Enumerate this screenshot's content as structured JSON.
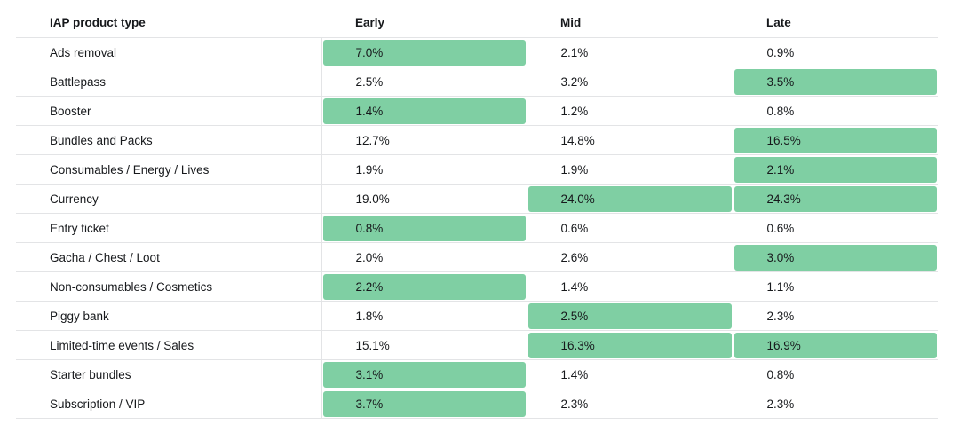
{
  "colors": {
    "highlight_green": "#7fcfa3",
    "border_gray": "#e3e4e6",
    "text_dark": "#17191c",
    "background": "#ffffff"
  },
  "table": {
    "columns": [
      "IAP product type",
      "Early",
      "Mid",
      "Late"
    ],
    "rows": [
      {
        "label": "Ads removal",
        "values": [
          "7.0%",
          "2.1%",
          "0.9%"
        ],
        "highlight": [
          true,
          false,
          false
        ]
      },
      {
        "label": "Battlepass",
        "values": [
          "2.5%",
          "3.2%",
          "3.5%"
        ],
        "highlight": [
          false,
          false,
          true
        ]
      },
      {
        "label": "Booster",
        "values": [
          "1.4%",
          "1.2%",
          "0.8%"
        ],
        "highlight": [
          true,
          false,
          false
        ]
      },
      {
        "label": "Bundles and Packs",
        "values": [
          "12.7%",
          "14.8%",
          "16.5%"
        ],
        "highlight": [
          false,
          false,
          true
        ]
      },
      {
        "label": "Consumables / Energy / Lives",
        "values": [
          "1.9%",
          "1.9%",
          "2.1%"
        ],
        "highlight": [
          false,
          false,
          true
        ]
      },
      {
        "label": "Currency",
        "values": [
          "19.0%",
          "24.0%",
          "24.3%"
        ],
        "highlight": [
          false,
          true,
          true
        ]
      },
      {
        "label": "Entry ticket",
        "values": [
          "0.8%",
          "0.6%",
          "0.6%"
        ],
        "highlight": [
          true,
          false,
          false
        ]
      },
      {
        "label": "Gacha / Chest / Loot",
        "values": [
          "2.0%",
          "2.6%",
          "3.0%"
        ],
        "highlight": [
          false,
          false,
          true
        ]
      },
      {
        "label": "Non-consumables / Cosmetics",
        "values": [
          "2.2%",
          "1.4%",
          "1.1%"
        ],
        "highlight": [
          true,
          false,
          false
        ]
      },
      {
        "label": "Piggy bank",
        "values": [
          "1.8%",
          "2.5%",
          "2.3%"
        ],
        "highlight": [
          false,
          true,
          false
        ]
      },
      {
        "label": "Limited-time events / Sales",
        "values": [
          "15.1%",
          "16.3%",
          "16.9%"
        ],
        "highlight": [
          false,
          true,
          true
        ]
      },
      {
        "label": "Starter bundles",
        "values": [
          "3.1%",
          "1.4%",
          "0.8%"
        ],
        "highlight": [
          true,
          false,
          false
        ]
      },
      {
        "label": "Subscription / VIP",
        "values": [
          "3.7%",
          "2.3%",
          "2.3%"
        ],
        "highlight": [
          true,
          false,
          false
        ]
      }
    ]
  },
  "chart_data": {
    "type": "table",
    "title": "",
    "row_header": "IAP product type",
    "rows": [
      "Ads removal",
      "Battlepass",
      "Booster",
      "Bundles and Packs",
      "Consumables / Energy / Lives",
      "Currency",
      "Entry ticket",
      "Gacha / Chest / Loot",
      "Non-consumables / Cosmetics",
      "Piggy bank",
      "Limited-time events / Sales",
      "Starter bundles",
      "Subscription / VIP"
    ],
    "unit": "%",
    "series": [
      {
        "name": "Early",
        "values": [
          7.0,
          2.5,
          1.4,
          12.7,
          1.9,
          19.0,
          0.8,
          2.0,
          2.2,
          1.8,
          15.1,
          3.1,
          3.7
        ]
      },
      {
        "name": "Mid",
        "values": [
          2.1,
          3.2,
          1.2,
          14.8,
          1.9,
          24.0,
          0.6,
          2.6,
          1.4,
          2.5,
          16.3,
          1.4,
          2.3
        ]
      },
      {
        "name": "Late",
        "values": [
          0.9,
          3.5,
          0.8,
          16.5,
          2.1,
          24.3,
          0.6,
          3.0,
          1.1,
          2.3,
          16.9,
          0.8,
          2.3
        ]
      }
    ],
    "highlighted_cells": [
      [
        "Early"
      ],
      [
        "Late"
      ],
      [
        "Early"
      ],
      [
        "Late"
      ],
      [
        "Late"
      ],
      [
        "Mid",
        "Late"
      ],
      [
        "Early"
      ],
      [
        "Late"
      ],
      [
        "Early"
      ],
      [
        "Mid"
      ],
      [
        "Mid",
        "Late"
      ],
      [
        "Early"
      ],
      [
        "Early"
      ]
    ],
    "layout": {
      "grid": "horizontal and vertical separators",
      "highlight_style": "green cell fill"
    }
  }
}
